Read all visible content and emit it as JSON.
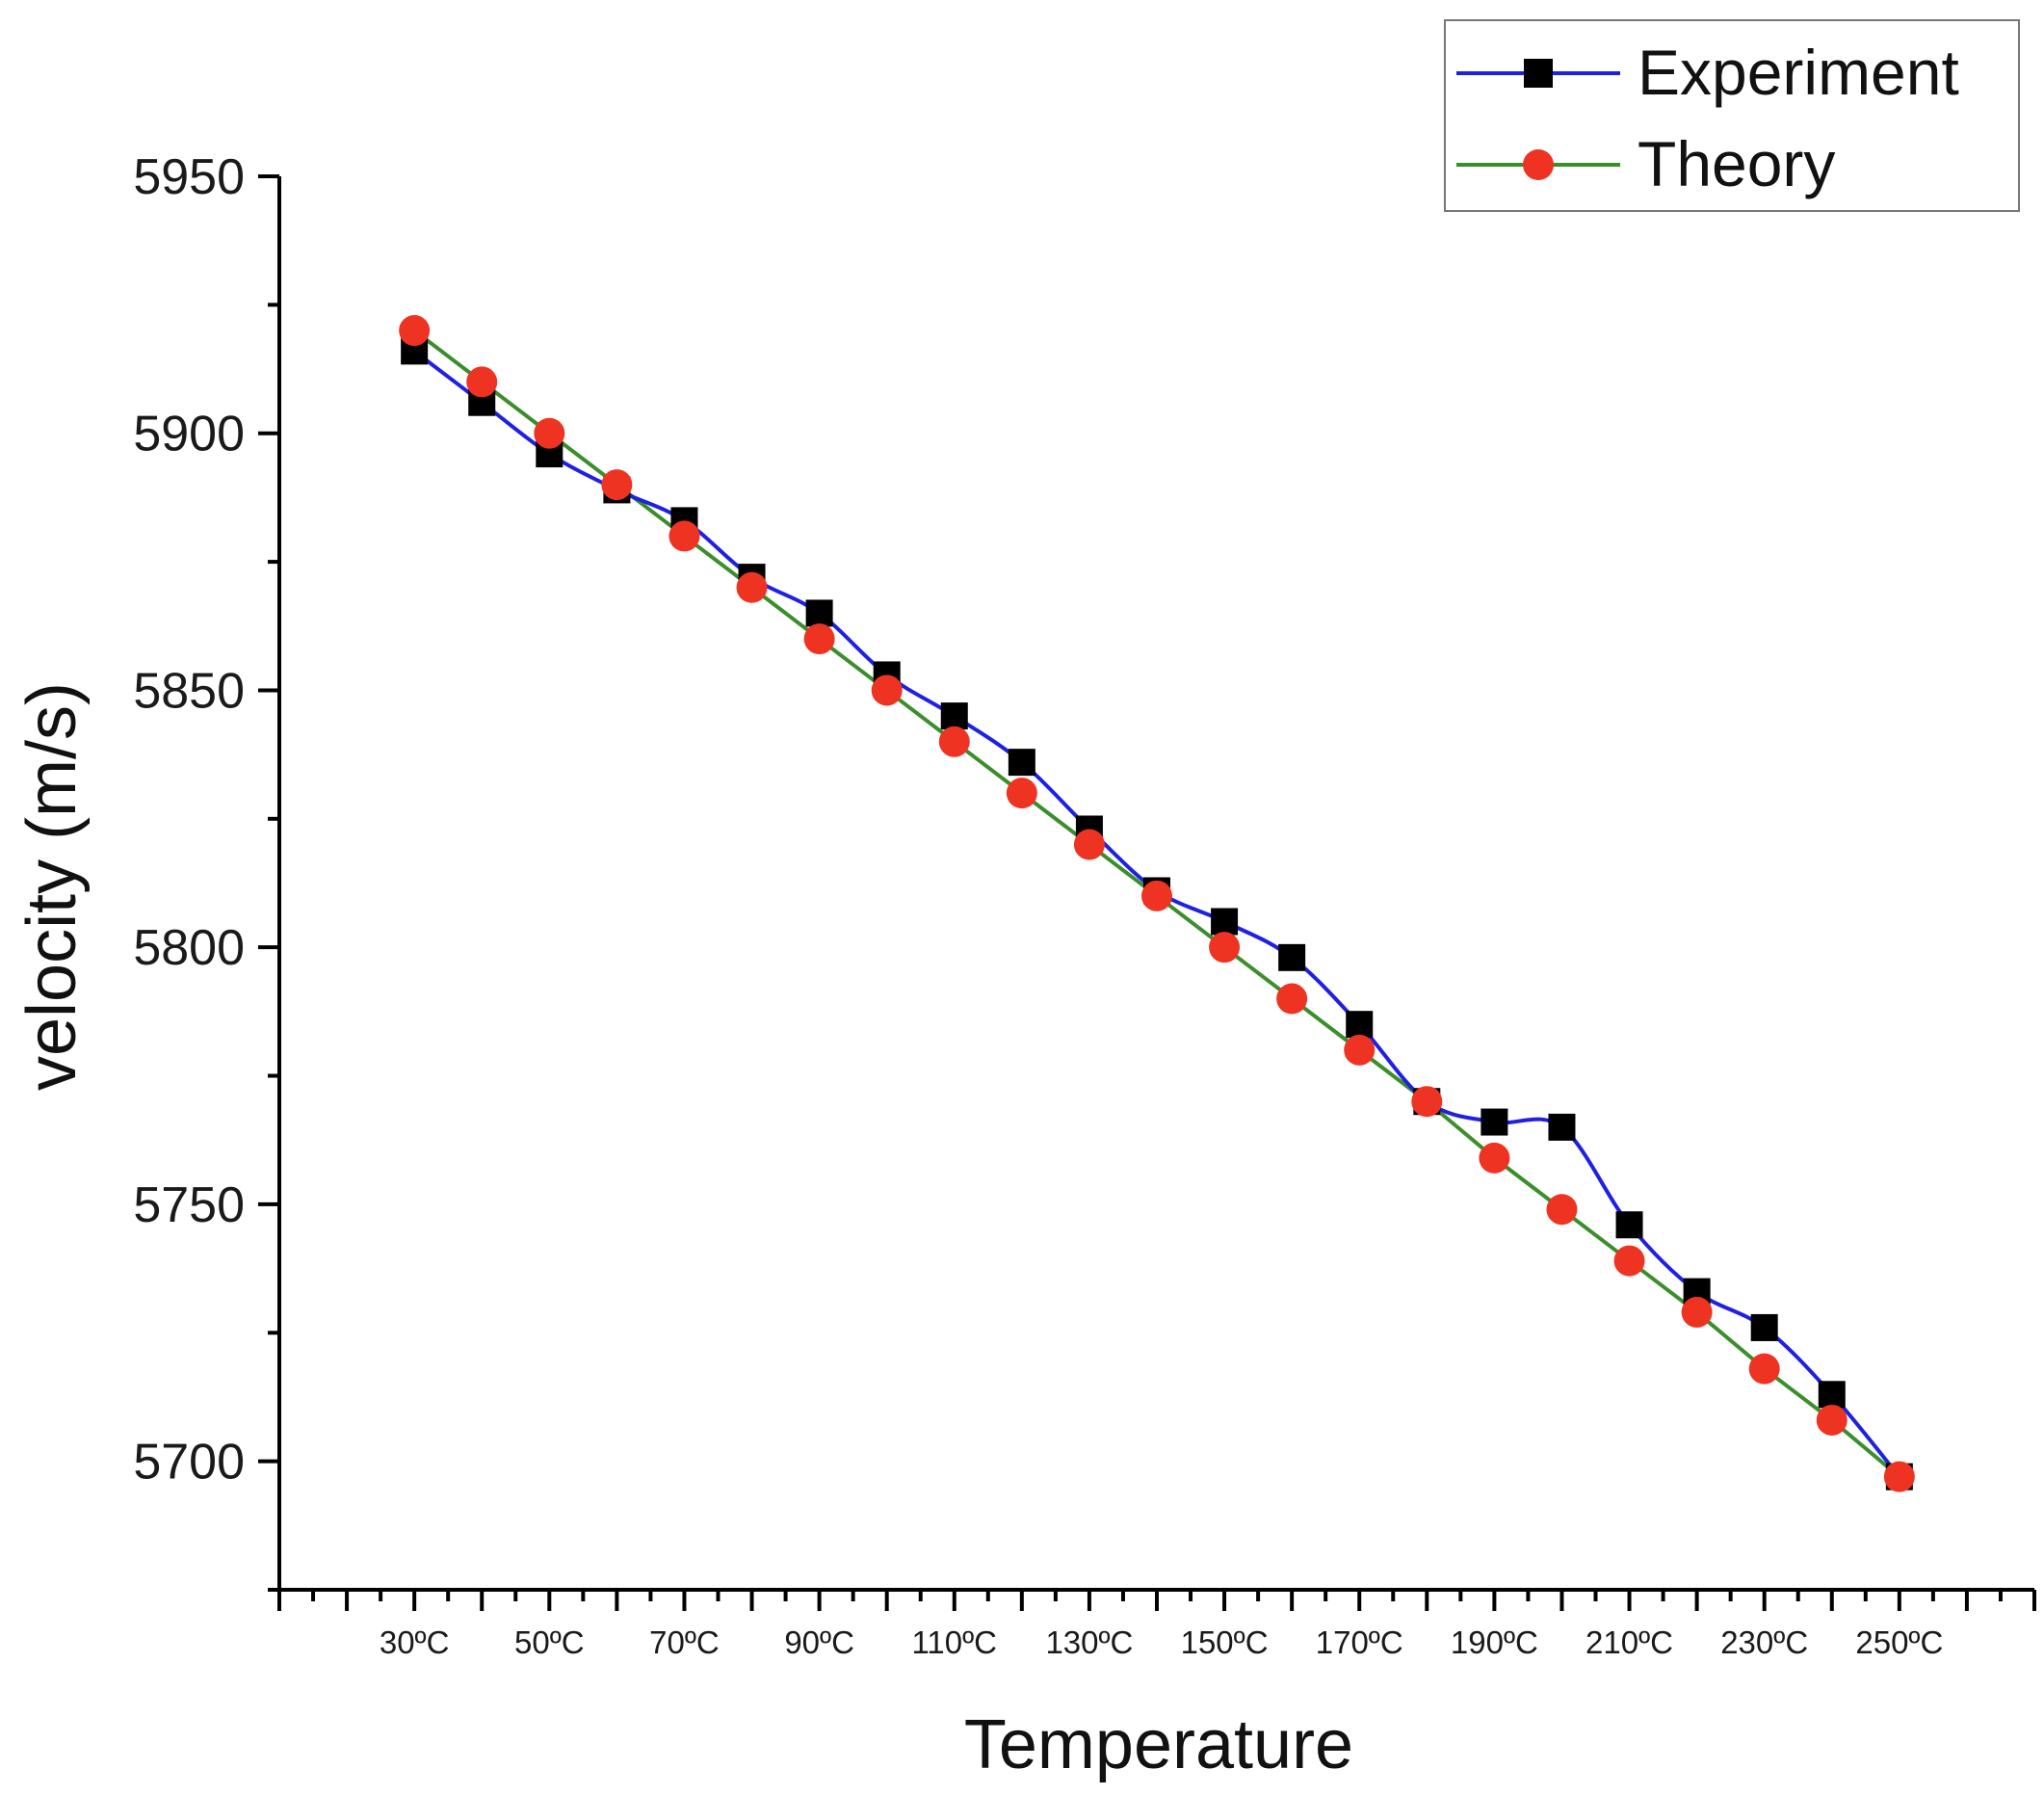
{
  "chart_data": {
    "type": "line",
    "title": "",
    "xlabel": "Temperature",
    "ylabel": "velocity (m/s)",
    "x": [
      30,
      40,
      50,
      60,
      70,
      80,
      90,
      100,
      110,
      120,
      130,
      140,
      150,
      160,
      170,
      180,
      190,
      200,
      210,
      220,
      230,
      240,
      250
    ],
    "x_tick_values": [
      30,
      50,
      70,
      90,
      110,
      130,
      150,
      170,
      190,
      210,
      230,
      250
    ],
    "x_tick_labels": [
      "30ºC",
      "50ºC",
      "70ºC",
      "90ºC",
      "110ºC",
      "130ºC",
      "150ºC",
      "170ºC",
      "190ºC",
      "210ºC",
      "230ºC",
      "250ºC"
    ],
    "xlim": [
      10,
      270
    ],
    "x_minor_step": 5,
    "x_major_step": 10,
    "ylim": [
      5675,
      5950
    ],
    "y_ticks": [
      5700,
      5750,
      5800,
      5850,
      5900,
      5950
    ],
    "y_tick_labels": [
      "5700",
      "5750",
      "5800",
      "5850",
      "5900",
      "5950"
    ],
    "y_minor_step": 25,
    "grid": false,
    "legend_position": "top-right",
    "series": [
      {
        "name": "Experiment",
        "color": "#1f1fe6",
        "marker": "square",
        "marker_color": "#000000",
        "values": [
          5916,
          5906,
          5896,
          5889,
          5883,
          5872,
          5865,
          5853,
          5845,
          5836,
          5823,
          5811,
          5805,
          5798,
          5785,
          5770,
          5766,
          5765,
          5746,
          5733,
          5726,
          5713,
          5697
        ]
      },
      {
        "name": "Theory",
        "color": "#3a8f2b",
        "marker": "circle",
        "marker_color": "#ee3322",
        "values": [
          5920,
          5910,
          5900,
          5890,
          5880,
          5870,
          5860,
          5850,
          5840,
          5830,
          5820,
          5810,
          5800,
          5790,
          5780,
          5770,
          5759,
          5749,
          5739,
          5729,
          5718,
          5708,
          5697
        ]
      }
    ]
  }
}
